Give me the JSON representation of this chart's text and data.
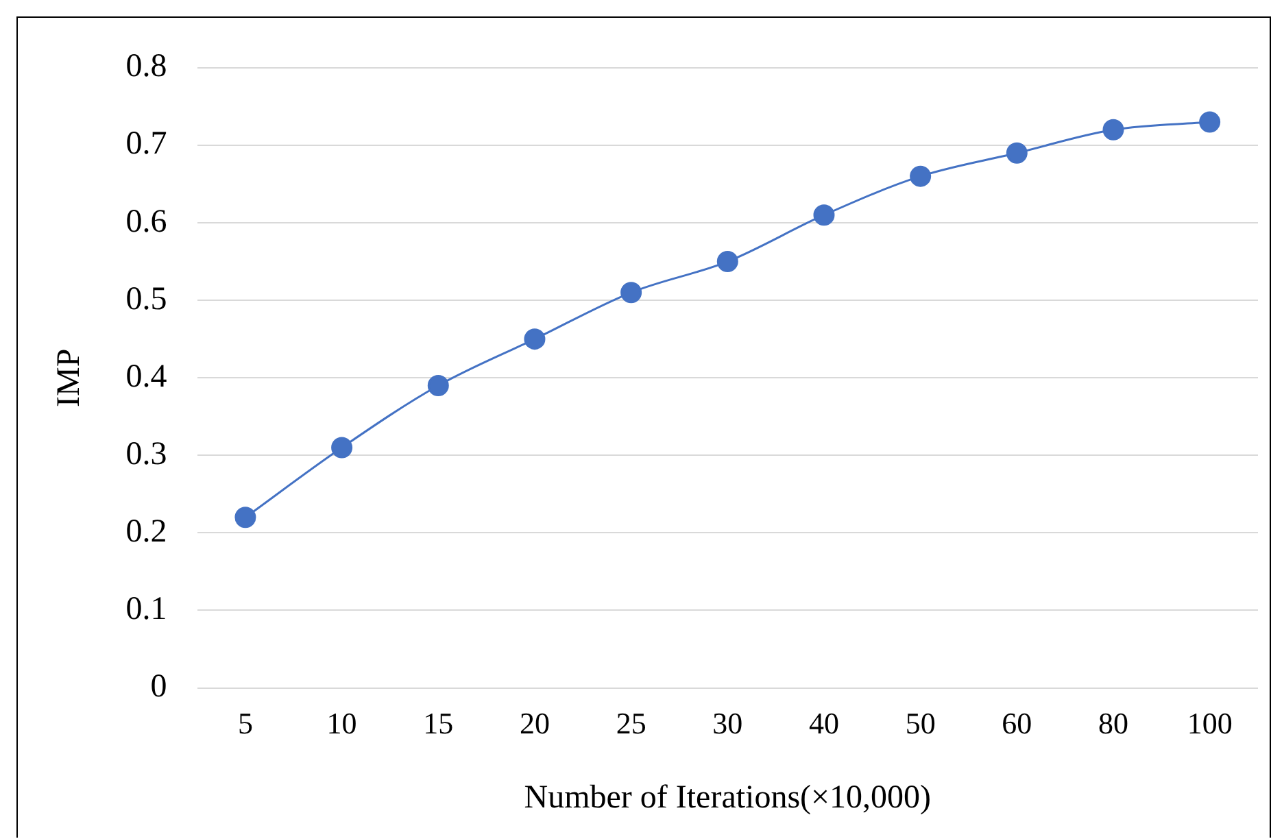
{
  "chart_data": {
    "type": "line",
    "xlabel": "Number of Iterations(×10,000)",
    "ylabel": "IMP",
    "categories": [
      "5",
      "10",
      "15",
      "20",
      "25",
      "30",
      "40",
      "50",
      "60",
      "80",
      "100"
    ],
    "series": [
      {
        "color": "#4472c4",
        "values": [
          0.22,
          0.31,
          0.39,
          0.45,
          0.51,
          0.55,
          0.61,
          0.66,
          0.69,
          0.72,
          0.73
        ]
      }
    ],
    "ylim": [
      0,
      0.8
    ],
    "yticks": [
      0,
      0.1,
      0.2,
      0.3,
      0.4,
      0.5,
      0.6,
      0.7,
      0.8
    ],
    "grid": "y",
    "legend": false,
    "marker": "circle",
    "line_style": "solid"
  }
}
